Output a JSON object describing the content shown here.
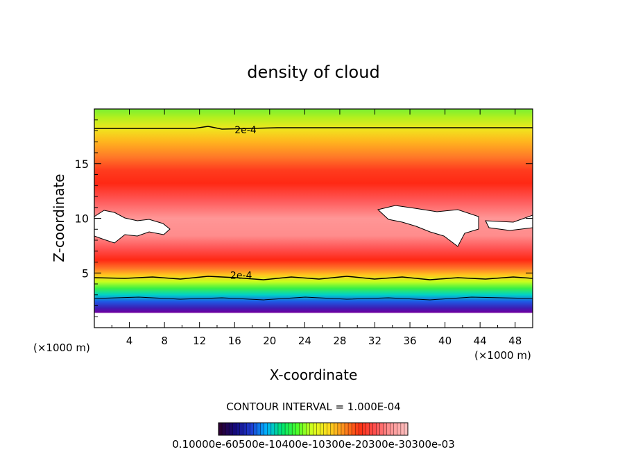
{
  "chart_data": {
    "type": "heatmap",
    "title": "density of cloud",
    "xlabel": "X-coordinate",
    "ylabel": "Z-coordinate",
    "x_unit_left": "(×1000 m)",
    "x_unit_right": "(×1000 m)",
    "xlim": [
      0,
      50
    ],
    "ylim": [
      0,
      20
    ],
    "xticks": [
      4,
      8,
      12,
      16,
      20,
      24,
      28,
      32,
      36,
      40,
      44,
      48
    ],
    "yticks": [
      5,
      10,
      15
    ],
    "contour_interval_text": "CONTOUR INTERVAL = 1.000E-04",
    "contour_labels": [
      {
        "text": "2e-4",
        "x": 16,
        "z": 18.1
      },
      {
        "text": "2e-4",
        "x": 15.5,
        "z": 4.8
      }
    ],
    "colorbar_labels_text": "0.10000e-60500e-10400e-10300e-20300e-30300e-03",
    "colorbar_colors": [
      "#2a0033",
      "#140a80",
      "#1e3cd2",
      "#00b4ff",
      "#00e66e",
      "#50ff28",
      "#dcff1e",
      "#ffdc1e",
      "#ff8c1e",
      "#ff3214",
      "#ff5050",
      "#ff9696",
      "#ffbebe"
    ]
  }
}
